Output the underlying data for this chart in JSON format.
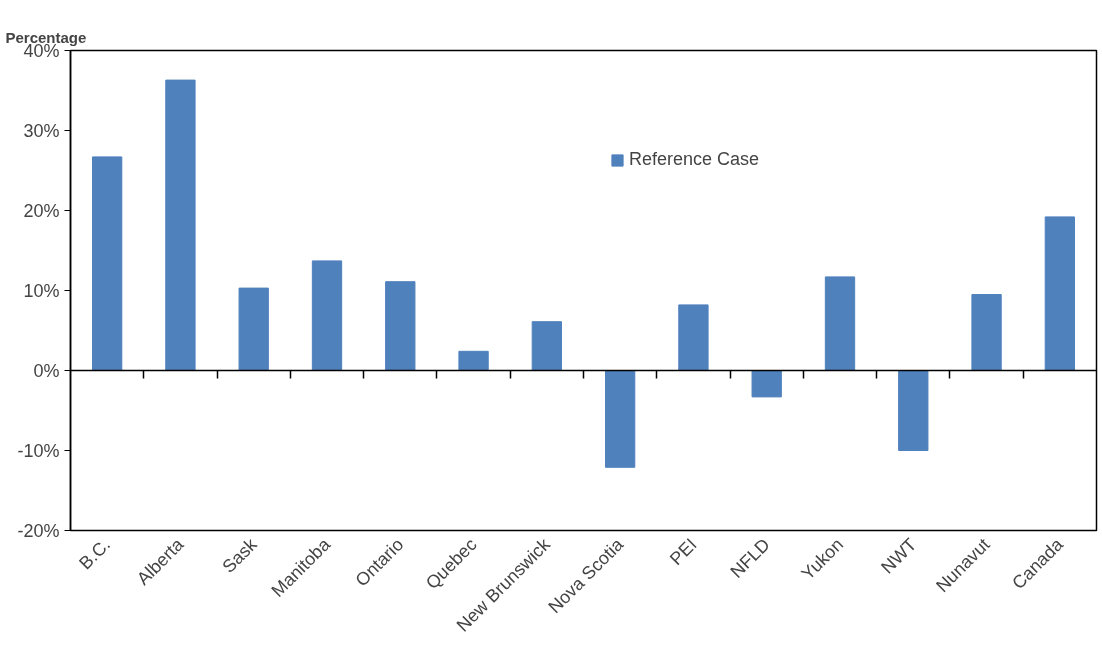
{
  "chart_data": {
    "type": "bar",
    "ylabel": "Percentage",
    "categories": [
      "B.C.",
      "Alberta",
      "Sask",
      "Manitoba",
      "Ontario",
      "Quebec",
      "New Brunswick",
      "Nova Scotia",
      "PEI",
      "NFLD",
      "Yukon",
      "NWT",
      "Nunavut",
      "Canada"
    ],
    "series": [
      {
        "name": "Reference Case",
        "color": "#4f81bd",
        "values": [
          26.7,
          36.3,
          10.3,
          13.7,
          11.1,
          2.4,
          6.1,
          -12.1,
          8.2,
          -3.3,
          11.7,
          -10.0,
          9.5,
          19.2
        ]
      }
    ],
    "ylim": [
      -20,
      40
    ],
    "yticks": [
      {
        "value": -20,
        "label": "-20%"
      },
      {
        "value": -10,
        "label": "-10%"
      },
      {
        "value": 0,
        "label": "0%"
      },
      {
        "value": 10,
        "label": "10%"
      },
      {
        "value": 20,
        "label": "20%"
      },
      {
        "value": 30,
        "label": "30%"
      },
      {
        "value": 40,
        "label": "40%"
      }
    ],
    "legend": "top"
  }
}
